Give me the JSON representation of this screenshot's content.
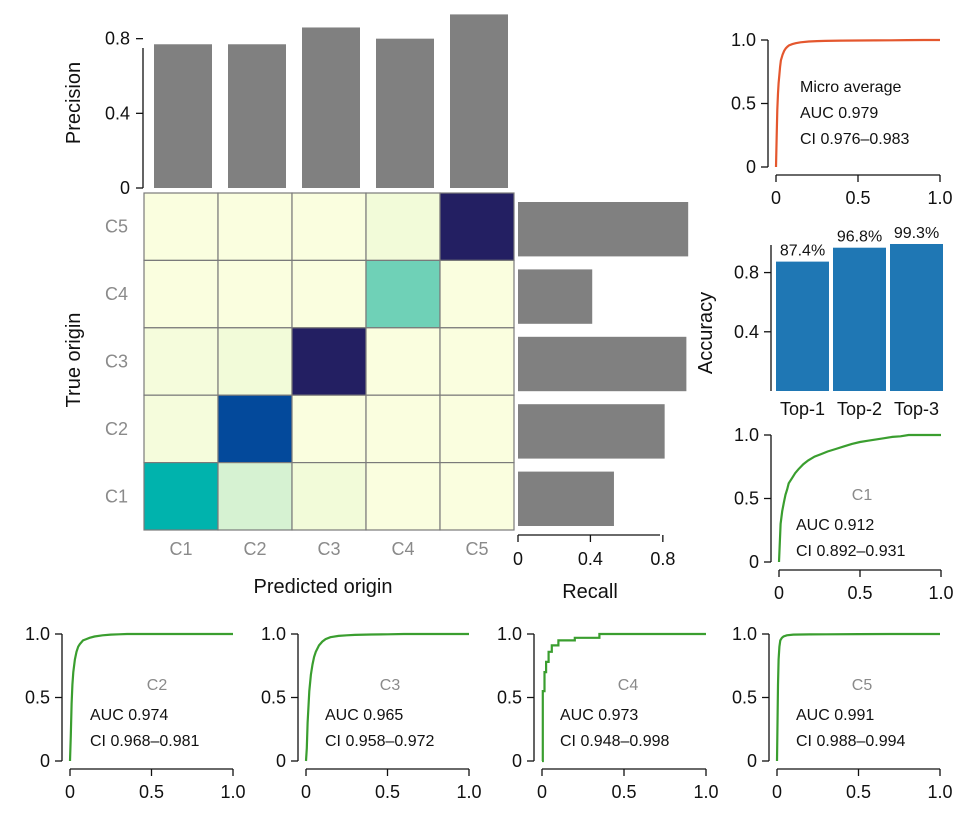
{
  "chart_data": [
    {
      "id": "precision",
      "type": "bar",
      "ylabel": "Precision",
      "categories": [
        "C1",
        "C2",
        "C3",
        "C4",
        "C5"
      ],
      "values": [
        0.77,
        0.77,
        0.86,
        0.8,
        0.93
      ],
      "ylim": [
        0,
        0.9
      ],
      "yticks": [
        0,
        0.4,
        0.8
      ],
      "ytick_labels": [
        "0",
        "0.4",
        "0.8"
      ],
      "color": "#808080"
    },
    {
      "id": "confusion",
      "type": "heatmap",
      "xlabel": "Predicted origin",
      "ylabel": "True origin",
      "x_categories": [
        "C1",
        "C2",
        "C3",
        "C4",
        "C5"
      ],
      "y_categories": [
        "C5",
        "C4",
        "C3",
        "C2",
        "C1"
      ],
      "cells": [
        [
          "#fafedf",
          "#fafedf",
          "#fafedf",
          "#f2fbd9",
          "#231f62"
        ],
        [
          "#fafedf",
          "#fafedf",
          "#fafedf",
          "#6fd1b7",
          "#fafedf"
        ],
        [
          "#f5fcdc",
          "#f2fbd9",
          "#231f62",
          "#fafedf",
          "#fafedf"
        ],
        [
          "#f5fcdc",
          "#03499b",
          "#fafedf",
          "#fafedf",
          "#fafedf"
        ],
        [
          "#00b3ad",
          "#d6f2d2",
          "#f2fbd9",
          "#fafedf",
          "#fafedf"
        ]
      ]
    },
    {
      "id": "recall",
      "type": "bar",
      "orientation": "horizontal",
      "xlabel": "Recall",
      "categories": [
        "C5",
        "C4",
        "C3",
        "C2",
        "C1"
      ],
      "values": [
        0.94,
        0.41,
        0.93,
        0.81,
        0.53
      ],
      "xlim": [
        0,
        0.95
      ],
      "xticks": [
        0,
        0.4,
        0.8
      ],
      "xtick_labels": [
        "0",
        "0.4",
        "0.8"
      ],
      "color": "#808080"
    },
    {
      "id": "roc-micro",
      "type": "line",
      "color": "#e4572e",
      "annotation": [
        "Micro average",
        "AUC 0.979",
        "CI 0.976–0.983"
      ],
      "annotation_grey": "",
      "xlim": [
        0,
        1
      ],
      "ylim": [
        0,
        1
      ],
      "ticks": [
        "0",
        "0.5",
        "1.0"
      ],
      "x": [
        0,
        0.004,
        0.008,
        0.012,
        0.016,
        0.02,
        0.025,
        0.03,
        0.04,
        0.05,
        0.06,
        0.07,
        0.08,
        0.1,
        0.12,
        0.15,
        0.2,
        0.25,
        0.3,
        0.4,
        0.5,
        0.6,
        0.7,
        0.8,
        0.9,
        1.0
      ],
      "y": [
        0,
        0.25,
        0.45,
        0.58,
        0.66,
        0.72,
        0.79,
        0.84,
        0.885,
        0.915,
        0.935,
        0.948,
        0.958,
        0.968,
        0.975,
        0.982,
        0.988,
        0.991,
        0.993,
        0.995,
        0.996,
        0.997,
        0.998,
        0.999,
        1.0,
        1.0
      ]
    },
    {
      "id": "accuracy",
      "type": "bar",
      "ylabel": "Accuracy",
      "categories": [
        "Top-1",
        "Top-2",
        "Top-3"
      ],
      "values": [
        0.874,
        0.968,
        0.993
      ],
      "value_labels": [
        "87.4%",
        "96.8%",
        "99.3%"
      ],
      "ylim": [
        0,
        1.02
      ],
      "yticks": [
        0.4,
        0.8
      ],
      "ytick_labels": [
        "0.4",
        "0.8"
      ],
      "color": "#1f77b4"
    },
    {
      "id": "roc-c1",
      "type": "line",
      "color": "#3a9e2f",
      "annotation_grey": "C1",
      "annotation": [
        "AUC 0.912",
        "CI 0.892–0.931"
      ],
      "xlim": [
        0,
        1
      ],
      "ylim": [
        0,
        1
      ],
      "ticks": [
        "0",
        "0.5",
        "1.0"
      ],
      "x": [
        0,
        0.01,
        0.02,
        0.03,
        0.04,
        0.05,
        0.06,
        0.08,
        0.1,
        0.12,
        0.15,
        0.18,
        0.22,
        0.26,
        0.3,
        0.35,
        0.4,
        0.45,
        0.5,
        0.55,
        0.6,
        0.65,
        0.7,
        0.75,
        0.8,
        0.85,
        0.9,
        1.0
      ],
      "y": [
        0,
        0.3,
        0.4,
        0.47,
        0.53,
        0.57,
        0.62,
        0.66,
        0.7,
        0.73,
        0.77,
        0.8,
        0.83,
        0.85,
        0.87,
        0.89,
        0.91,
        0.93,
        0.945,
        0.955,
        0.965,
        0.975,
        0.985,
        0.99,
        1.0,
        1.0,
        1.0,
        1.0
      ]
    },
    {
      "id": "roc-c2",
      "type": "line",
      "color": "#3a9e2f",
      "annotation_grey": "C2",
      "annotation": [
        "AUC 0.974",
        "CI 0.968–0.981"
      ],
      "xlim": [
        0,
        1
      ],
      "ylim": [
        0,
        1
      ],
      "ticks": [
        "0",
        "0.5",
        "1.0"
      ],
      "x": [
        0,
        0.005,
        0.01,
        0.015,
        0.02,
        0.03,
        0.04,
        0.05,
        0.06,
        0.08,
        0.1,
        0.12,
        0.15,
        0.2,
        0.25,
        0.3,
        0.35,
        0.4,
        1.0
      ],
      "y": [
        0,
        0.2,
        0.45,
        0.6,
        0.7,
        0.8,
        0.86,
        0.9,
        0.92,
        0.95,
        0.96,
        0.97,
        0.98,
        0.99,
        0.995,
        0.998,
        1.0,
        1.0,
        1.0
      ]
    },
    {
      "id": "roc-c3",
      "type": "line",
      "color": "#3a9e2f",
      "annotation_grey": "C3",
      "annotation": [
        "AUC 0.965",
        "CI 0.958–0.972"
      ],
      "xlim": [
        0,
        1
      ],
      "ylim": [
        0,
        1
      ],
      "ticks": [
        "0",
        "0.5",
        "1.0"
      ],
      "x": [
        0,
        0.005,
        0.01,
        0.02,
        0.03,
        0.04,
        0.05,
        0.06,
        0.08,
        0.1,
        0.12,
        0.15,
        0.2,
        0.25,
        0.3,
        0.4,
        0.5,
        0.6,
        0.7,
        0.8,
        1.0
      ],
      "y": [
        0,
        0.1,
        0.3,
        0.55,
        0.68,
        0.76,
        0.82,
        0.86,
        0.91,
        0.94,
        0.96,
        0.975,
        0.985,
        0.99,
        0.993,
        0.996,
        0.998,
        1.0,
        1.0,
        1.0,
        1.0
      ]
    },
    {
      "id": "roc-c4",
      "type": "line",
      "color": "#3a9e2f",
      "annotation_grey": "C4",
      "annotation": [
        "AUC 0.973",
        "CI 0.948–0.998"
      ],
      "xlim": [
        0,
        1
      ],
      "ylim": [
        0,
        1
      ],
      "ticks": [
        "0",
        "0.5",
        "1.0"
      ],
      "x": [
        0,
        0.005,
        0.005,
        0.015,
        0.015,
        0.025,
        0.025,
        0.04,
        0.04,
        0.06,
        0.06,
        0.1,
        0.1,
        0.2,
        0.2,
        0.35,
        0.35,
        0.5,
        1.0
      ],
      "y": [
        0,
        0,
        0.55,
        0.55,
        0.7,
        0.7,
        0.78,
        0.78,
        0.86,
        0.86,
        0.91,
        0.91,
        0.95,
        0.95,
        0.97,
        0.97,
        1.0,
        1.0,
        1.0
      ]
    },
    {
      "id": "roc-c5",
      "type": "line",
      "color": "#3a9e2f",
      "annotation_grey": "C5",
      "annotation": [
        "AUC 0.991",
        "CI 0.988–0.994"
      ],
      "xlim": [
        0,
        1
      ],
      "ylim": [
        0,
        1
      ],
      "ticks": [
        "0",
        "0.5",
        "1.0"
      ],
      "x": [
        0,
        0.003,
        0.006,
        0.01,
        0.015,
        0.02,
        0.03,
        0.04,
        0.06,
        0.1,
        0.2,
        0.3,
        0.5,
        0.7,
        1.0
      ],
      "y": [
        0,
        0.3,
        0.6,
        0.8,
        0.9,
        0.95,
        0.97,
        0.98,
        0.99,
        0.995,
        0.997,
        0.998,
        0.999,
        1.0,
        1.0
      ]
    }
  ]
}
